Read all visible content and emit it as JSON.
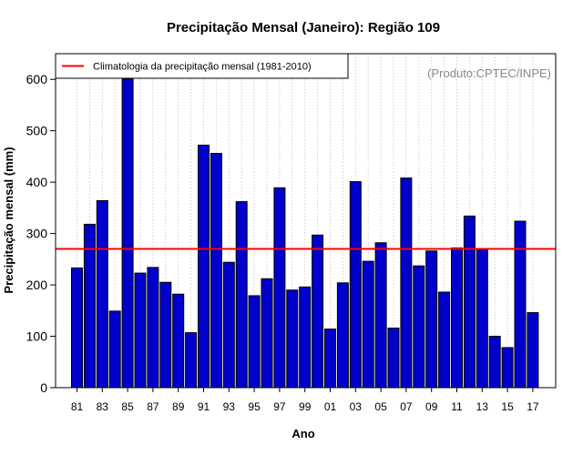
{
  "chart_data": {
    "type": "bar",
    "title": "Precipitação Mensal (Janeiro): Região 109",
    "xlabel": "Ano",
    "ylabel": "Precipitação mensal (mm)",
    "credit": "(Produto:CPTEC/INPE)",
    "ylim": [
      0,
      650
    ],
    "yticks": [
      0,
      100,
      200,
      300,
      400,
      500,
      600
    ],
    "grid": "vertical dotted",
    "legend_placement": "top-left",
    "categories": [
      "81",
      "82",
      "83",
      "84",
      "85",
      "86",
      "87",
      "88",
      "89",
      "90",
      "91",
      "92",
      "93",
      "94",
      "95",
      "96",
      "97",
      "98",
      "99",
      "00",
      "01",
      "02",
      "03",
      "04",
      "05",
      "06",
      "07",
      "08",
      "09",
      "10",
      "11",
      "12",
      "13",
      "14",
      "15",
      "16",
      "17"
    ],
    "x_tick_labels": [
      "81",
      "83",
      "85",
      "87",
      "89",
      "91",
      "93",
      "95",
      "97",
      "99",
      "01",
      "03",
      "05",
      "07",
      "09",
      "11",
      "13",
      "15",
      "17"
    ],
    "values": [
      233,
      318,
      364,
      149,
      601,
      223,
      234,
      205,
      182,
      107,
      472,
      456,
      244,
      362,
      179,
      212,
      389,
      190,
      196,
      297,
      114,
      204,
      401,
      246,
      282,
      116,
      408,
      237,
      266,
      186,
      272,
      334,
      269,
      100,
      78,
      324,
      146
    ],
    "reference_line": {
      "name": "Climatologia da precipitação mensal (1981-2010)",
      "value": 270,
      "color": "#ff0000"
    },
    "bar_color": "#0000cc"
  }
}
